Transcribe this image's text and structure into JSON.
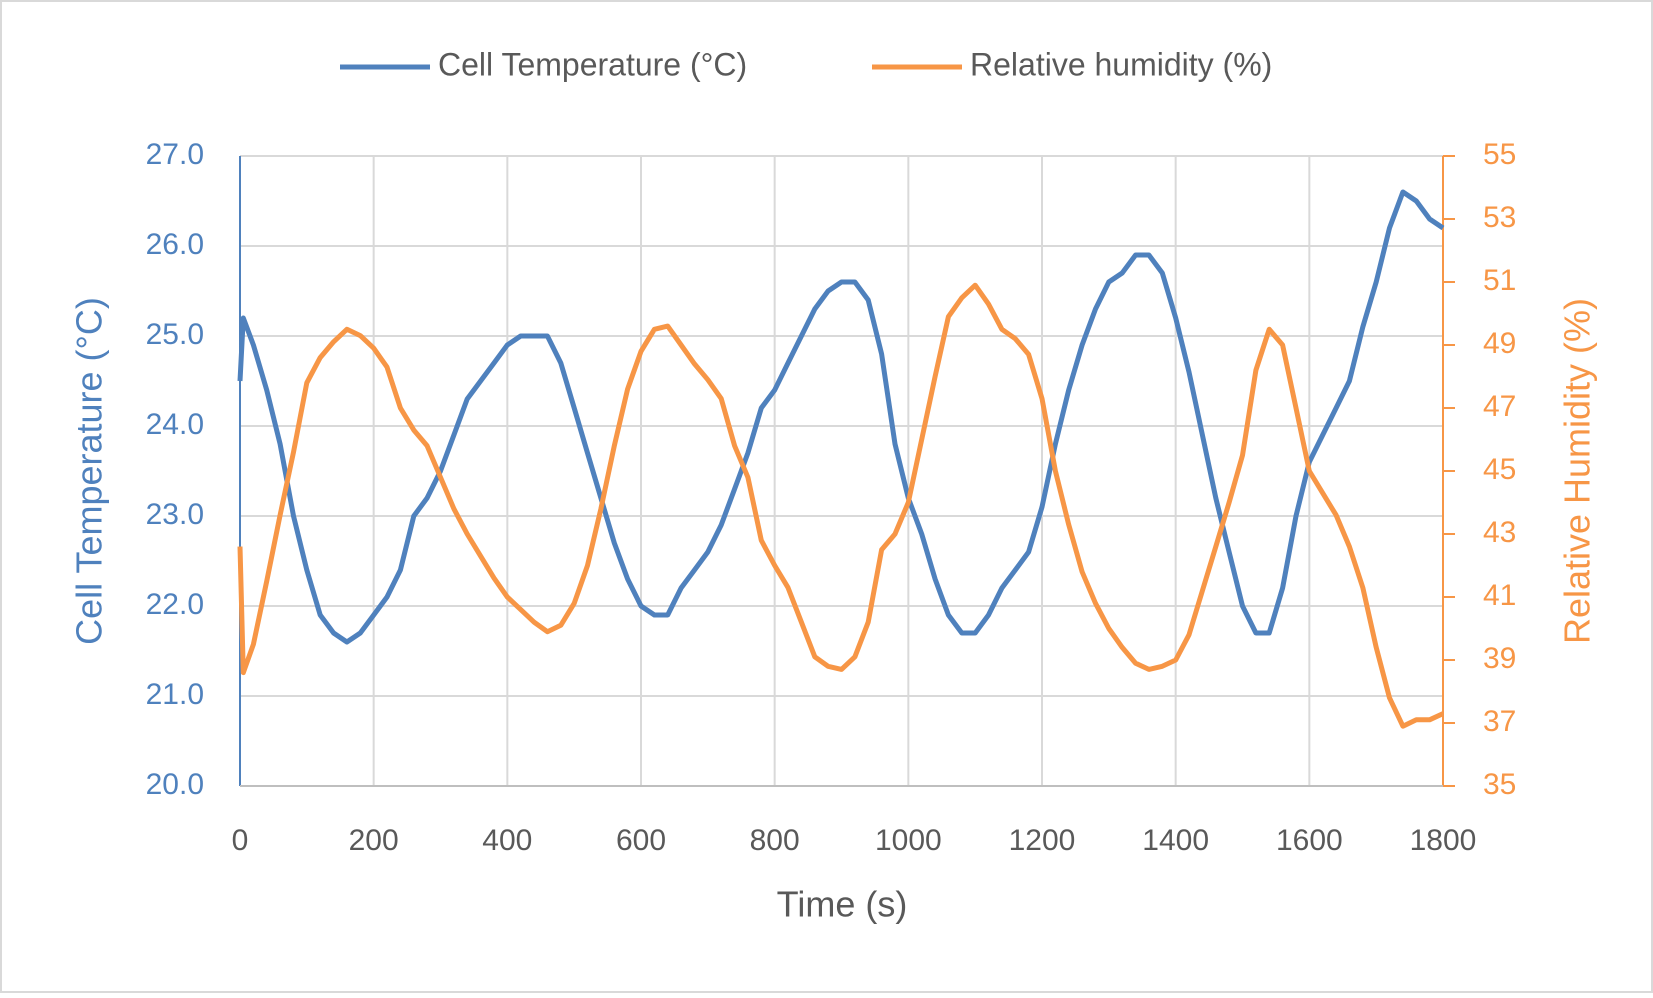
{
  "chart_data": {
    "type": "line",
    "x": [
      0,
      5,
      20,
      40,
      60,
      80,
      100,
      120,
      140,
      160,
      180,
      200,
      220,
      240,
      260,
      280,
      300,
      320,
      340,
      360,
      380,
      400,
      420,
      440,
      460,
      480,
      500,
      520,
      540,
      560,
      580,
      600,
      620,
      640,
      660,
      680,
      700,
      720,
      740,
      760,
      780,
      800,
      820,
      840,
      860,
      880,
      900,
      920,
      940,
      960,
      980,
      1000,
      1020,
      1040,
      1060,
      1080,
      1100,
      1120,
      1140,
      1160,
      1180,
      1200,
      1220,
      1240,
      1260,
      1280,
      1300,
      1320,
      1340,
      1360,
      1380,
      1400,
      1420,
      1440,
      1460,
      1480,
      1500,
      1520,
      1540,
      1560,
      1580,
      1600,
      1620,
      1640,
      1660,
      1680,
      1700,
      1720,
      1740,
      1760,
      1780,
      1800
    ],
    "series": [
      {
        "name": "Cell Temperature (°C)",
        "color": "#4f81bd",
        "values": [
          24.5,
          25.2,
          24.9,
          24.4,
          23.8,
          23.0,
          22.4,
          21.9,
          21.7,
          21.6,
          21.7,
          21.9,
          22.1,
          22.4,
          23.0,
          23.2,
          23.5,
          23.9,
          24.3,
          24.5,
          24.7,
          24.9,
          25.0,
          25.0,
          25.0,
          24.7,
          24.2,
          23.7,
          23.2,
          22.7,
          22.3,
          22.0,
          21.9,
          21.9,
          22.2,
          22.4,
          22.6,
          22.9,
          23.3,
          23.7,
          24.2,
          24.4,
          24.7,
          25.0,
          25.3,
          25.5,
          25.6,
          25.6,
          25.4,
          24.8,
          23.8,
          23.2,
          22.8,
          22.3,
          21.9,
          21.7,
          21.7,
          21.9,
          22.2,
          22.4,
          22.6,
          23.1,
          23.8,
          24.4,
          24.9,
          25.3,
          25.6,
          25.7,
          25.9,
          25.9,
          25.7,
          25.2,
          24.6,
          23.9,
          23.2,
          22.6,
          22.0,
          21.7,
          21.7,
          22.2,
          23.0,
          23.6,
          23.9,
          24.2,
          24.5,
          25.1,
          25.6,
          26.2,
          26.6,
          26.5,
          26.3,
          26.2
        ]
      },
      {
        "name": "Relative humidity (%)",
        "color": "#f79646",
        "axis": "y2",
        "values": [
          42.6,
          38.6,
          39.5,
          41.5,
          43.6,
          45.6,
          47.8,
          48.6,
          49.1,
          49.5,
          49.3,
          48.9,
          48.3,
          47.0,
          46.3,
          45.8,
          44.8,
          43.8,
          43.0,
          42.3,
          41.6,
          41.0,
          40.6,
          40.2,
          39.9,
          40.1,
          40.8,
          42.0,
          43.8,
          45.8,
          47.6,
          48.8,
          49.5,
          49.6,
          49.0,
          48.4,
          47.9,
          47.3,
          45.8,
          44.8,
          42.8,
          42.0,
          41.3,
          40.2,
          39.1,
          38.8,
          38.7,
          39.1,
          40.2,
          42.5,
          43.0,
          44.0,
          46.0,
          48.0,
          49.9,
          50.5,
          50.9,
          50.3,
          49.5,
          49.2,
          48.7,
          47.3,
          45.0,
          43.3,
          41.8,
          40.8,
          40.0,
          39.4,
          38.9,
          38.7,
          38.8,
          39.0,
          39.8,
          41.2,
          42.6,
          44.0,
          45.5,
          48.2,
          49.5,
          49.0,
          47.0,
          45.0,
          44.3,
          43.6,
          42.6,
          41.3,
          39.4,
          37.8,
          36.9,
          37.1,
          37.1,
          37.3
        ]
      }
    ],
    "x_label": "Time (s)",
    "y_label": "Cell Temperature (°C)",
    "y2_label": "Relative Humidity (%)",
    "xlim": [
      0,
      1800
    ],
    "xticks": [
      0,
      200,
      400,
      600,
      800,
      1000,
      1200,
      1400,
      1600,
      1800
    ],
    "ylim": [
      20,
      27
    ],
    "yticks": [
      {
        "value": 20,
        "label": "20.0"
      },
      {
        "value": 21,
        "label": "21.0"
      },
      {
        "value": 22,
        "label": "22.0"
      },
      {
        "value": 23,
        "label": "23.0"
      },
      {
        "value": 24,
        "label": "24.0"
      },
      {
        "value": 25,
        "label": "25.0"
      },
      {
        "value": 26,
        "label": "26.0"
      },
      {
        "value": 27,
        "label": "27.0"
      }
    ],
    "y2lim": [
      35,
      55
    ],
    "y2ticks": [
      35,
      37,
      39,
      41,
      43,
      45,
      47,
      49,
      51,
      53,
      55
    ],
    "grid": true,
    "legend": "top"
  }
}
